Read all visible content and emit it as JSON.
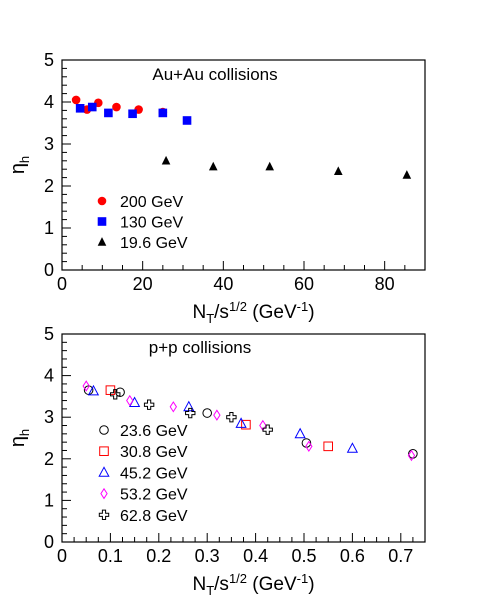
{
  "chart_data": [
    {
      "type": "scatter",
      "title": "Au+Au collisions",
      "xlabel": {
        "base": "N",
        "sub": "T",
        "mid": "/s",
        "sup": "1/2",
        "tail": " (GeV",
        "sup2": "-1",
        "end": ")"
      },
      "ylabel": {
        "base": "η",
        "sub": "h"
      },
      "xlim": [
        0,
        90
      ],
      "ylim": [
        0,
        5
      ],
      "xticks": [
        0,
        20,
        40,
        60,
        80
      ],
      "yticks": [
        0,
        1,
        2,
        3,
        4,
        5
      ],
      "xtick_labels": [
        "0",
        "20",
        "40",
        "60",
        "80"
      ],
      "ytick_labels": [
        "0",
        "1",
        "2",
        "3",
        "4",
        "5"
      ],
      "legend_position": "lower-left",
      "series": [
        {
          "name": "200 GeV",
          "marker": "circle-filled",
          "color": "#ff0000",
          "points": [
            [
              3.5,
              4.05
            ],
            [
              6.2,
              3.82
            ],
            [
              9.0,
              3.98
            ],
            [
              13.5,
              3.88
            ],
            [
              19.0,
              3.82
            ],
            [
              25.0,
              3.76
            ]
          ]
        },
        {
          "name": "130 GeV",
          "marker": "square-filled",
          "color": "#0000ff",
          "points": [
            [
              4.5,
              3.85
            ],
            [
              7.5,
              3.88
            ],
            [
              11.5,
              3.74
            ],
            [
              17.5,
              3.72
            ],
            [
              25.0,
              3.74
            ],
            [
              31.0,
              3.56
            ]
          ]
        },
        {
          "name": "19.6 GeV",
          "marker": "triangle-filled",
          "color": "#000000",
          "points": [
            [
              25.8,
              2.6
            ],
            [
              37.5,
              2.46
            ],
            [
              51.5,
              2.46
            ],
            [
              68.5,
              2.35
            ],
            [
              85.5,
              2.26
            ]
          ]
        }
      ]
    },
    {
      "type": "scatter",
      "title": "p+p collisions",
      "xlabel": {
        "base": "N",
        "sub": "T",
        "mid": "/s",
        "sup": "1/2",
        "tail": " (GeV",
        "sup2": "-1",
        "end": ")"
      },
      "ylabel": {
        "base": "η",
        "sub": "h"
      },
      "xlim": [
        0,
        0.75
      ],
      "ylim": [
        0,
        5
      ],
      "xticks": [
        0,
        0.1,
        0.2,
        0.3,
        0.4,
        0.5,
        0.6,
        0.7
      ],
      "yticks": [
        0,
        1,
        2,
        3,
        4,
        5
      ],
      "xtick_labels": [
        "0",
        "0.1",
        "0.2",
        "0.3",
        "0.4",
        "0.5",
        "0.6",
        "0.7"
      ],
      "ytick_labels": [
        "0",
        "1",
        "2",
        "3",
        "4",
        "5"
      ],
      "legend_position": "lower-left",
      "series": [
        {
          "name": "23.6 GeV",
          "marker": "circle-open",
          "color": "#000000",
          "points": [
            [
              0.055,
              3.65
            ],
            [
              0.12,
              3.6
            ],
            [
              0.3,
              3.1
            ],
            [
              0.505,
              2.38
            ],
            [
              0.725,
              2.12
            ]
          ]
        },
        {
          "name": "30.8 GeV",
          "marker": "square-open",
          "color": "#ff0000",
          "points": [
            [
              0.1,
              3.65
            ],
            [
              0.38,
              2.82
            ],
            [
              0.55,
              2.3
            ]
          ]
        },
        {
          "name": "45.2 GeV",
          "marker": "triangle-open",
          "color": "#0000ff",
          "points": [
            [
              0.065,
              3.63
            ],
            [
              0.15,
              3.35
            ],
            [
              0.262,
              3.25
            ],
            [
              0.37,
              2.85
            ],
            [
              0.492,
              2.6
            ],
            [
              0.6,
              2.25
            ]
          ]
        },
        {
          "name": "53.2 GeV",
          "marker": "diamond-open",
          "color": "#ff00ff",
          "points": [
            [
              0.05,
              3.75
            ],
            [
              0.14,
              3.4
            ],
            [
              0.23,
              3.25
            ],
            [
              0.32,
              3.05
            ],
            [
              0.415,
              2.8
            ],
            [
              0.51,
              2.3
            ],
            [
              0.722,
              2.08
            ]
          ]
        },
        {
          "name": "62.8 GeV",
          "marker": "cross-open",
          "color": "#000000",
          "points": [
            [
              0.11,
              3.55
            ],
            [
              0.18,
              3.3
            ],
            [
              0.265,
              3.1
            ],
            [
              0.35,
              3.0
            ],
            [
              0.425,
              2.7
            ]
          ]
        }
      ]
    }
  ]
}
